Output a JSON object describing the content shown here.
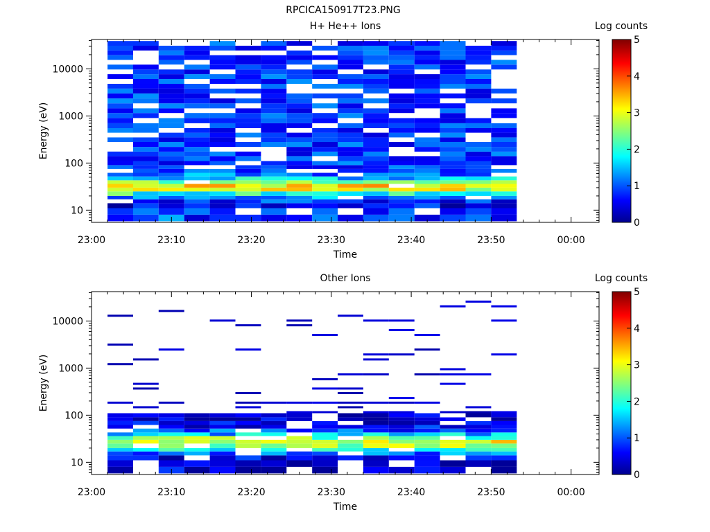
{
  "figure_title": "RPCICA150917T23.PNG",
  "colors": {
    "colormap": [
      "#00008f",
      "#0000ff",
      "#00ffff",
      "#ffff00",
      "#ff0000",
      "#800000"
    ],
    "frame": "#000000",
    "background": "#ffffff"
  },
  "chart_data": [
    {
      "type": "heatmap",
      "title": "H+ He++ Ions",
      "xlabel": "Time",
      "ylabel": "Energy (eV)",
      "colorbar_label": "Log counts",
      "colorbar_ticks": [
        "0",
        "1",
        "2",
        "3",
        "4",
        "5"
      ],
      "colorbar_range": [
        0,
        5
      ],
      "x_ticks": [
        "23:00",
        "23:10",
        "23:20",
        "23:30",
        "23:40",
        "23:50",
        "00:00"
      ],
      "x_range_minutes": [
        0,
        63.5
      ],
      "y_scale": "log",
      "y_ticks": [
        "10",
        "100",
        "1000",
        "10000"
      ],
      "y_tick_values": [
        10,
        100,
        1000,
        10000
      ],
      "y_range": [
        5.5,
        42000
      ],
      "x_start_minutes": 2.0,
      "bin_width_minutes": 3.2,
      "n_bins": 16,
      "energy_edges": [
        5.8,
        8,
        11,
        14,
        17,
        20,
        25,
        30,
        36,
        43,
        52,
        62,
        75,
        90,
        110,
        140,
        175,
        220,
        280,
        350,
        440,
        550,
        700,
        900,
        1150,
        1450,
        1850,
        2350,
        3000,
        3800,
        4800,
        6100,
        7700,
        9700,
        12300,
        15500,
        19500,
        24500,
        31000,
        39000
      ],
      "sparse": false,
      "low_profile": [
        0.9,
        0.7,
        0.5,
        0.8,
        1.3,
        2.0,
        2.9,
        3.2,
        2.5,
        1.6,
        1.2
      ],
      "high_level": 0.85,
      "gap_rate": 0.2,
      "seed": 7
    },
    {
      "type": "heatmap",
      "title": "Other Ions",
      "xlabel": "Time",
      "ylabel": "Energy (eV)",
      "colorbar_label": "Log counts",
      "colorbar_ticks": [
        "0",
        "1",
        "2",
        "3",
        "4",
        "5"
      ],
      "colorbar_range": [
        0,
        5
      ],
      "x_ticks": [
        "23:00",
        "23:10",
        "23:20",
        "23:30",
        "23:40",
        "23:50",
        "00:00"
      ],
      "x_range_minutes": [
        0,
        63.5
      ],
      "y_scale": "log",
      "y_ticks": [
        "10",
        "100",
        "1000",
        "10000"
      ],
      "y_tick_values": [
        10,
        100,
        1000,
        10000
      ],
      "y_range": [
        5.5,
        42000
      ],
      "x_start_minutes": 2.0,
      "bin_width_minutes": 3.2,
      "n_bins": 16,
      "energy_edges": [
        5.8,
        8,
        11,
        14,
        17,
        20,
        25,
        30,
        36,
        43,
        52,
        62,
        75,
        90,
        110,
        140,
        175,
        220,
        280,
        350,
        440,
        550,
        700,
        900,
        1150,
        1450,
        1850,
        2350,
        3000,
        3800,
        4800,
        6100,
        7700,
        9700,
        12300,
        15500,
        19500,
        24500,
        31000,
        39000
      ],
      "sparse": true,
      "low_profile": [
        0.4,
        0.3,
        0.6,
        1.2,
        1.9,
        2.6,
        3.0,
        2.4,
        1.5,
        0.9,
        0.6,
        0.4,
        0.3,
        0.2
      ],
      "high_level": 0.15,
      "gap_rate": 0.35,
      "seed": 23
    }
  ]
}
